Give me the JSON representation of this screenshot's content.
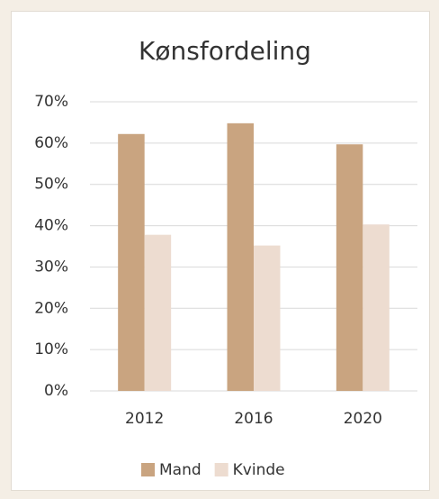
{
  "chart_data": {
    "type": "bar",
    "title": "Kønsfordeling",
    "categories": [
      "2012",
      "2016",
      "2020"
    ],
    "series": [
      {
        "name": "Mand",
        "color": "#c9a480",
        "values": [
          62.2,
          64.8,
          59.7
        ]
      },
      {
        "name": "Kvinde",
        "color": "#eddcd0",
        "values": [
          37.8,
          35.2,
          40.3
        ]
      }
    ],
    "ylim": [
      0,
      70
    ],
    "yticks": [
      {
        "value": 0,
        "label": "0%"
      },
      {
        "value": 10,
        "label": "10%"
      },
      {
        "value": 20,
        "label": "20%"
      },
      {
        "value": 30,
        "label": "30%"
      },
      {
        "value": 40,
        "label": "40%"
      },
      {
        "value": 50,
        "label": "50%"
      },
      {
        "value": 60,
        "label": "60%"
      },
      {
        "value": 70,
        "label": "70%"
      }
    ],
    "grid": true,
    "legend": "bottom"
  }
}
